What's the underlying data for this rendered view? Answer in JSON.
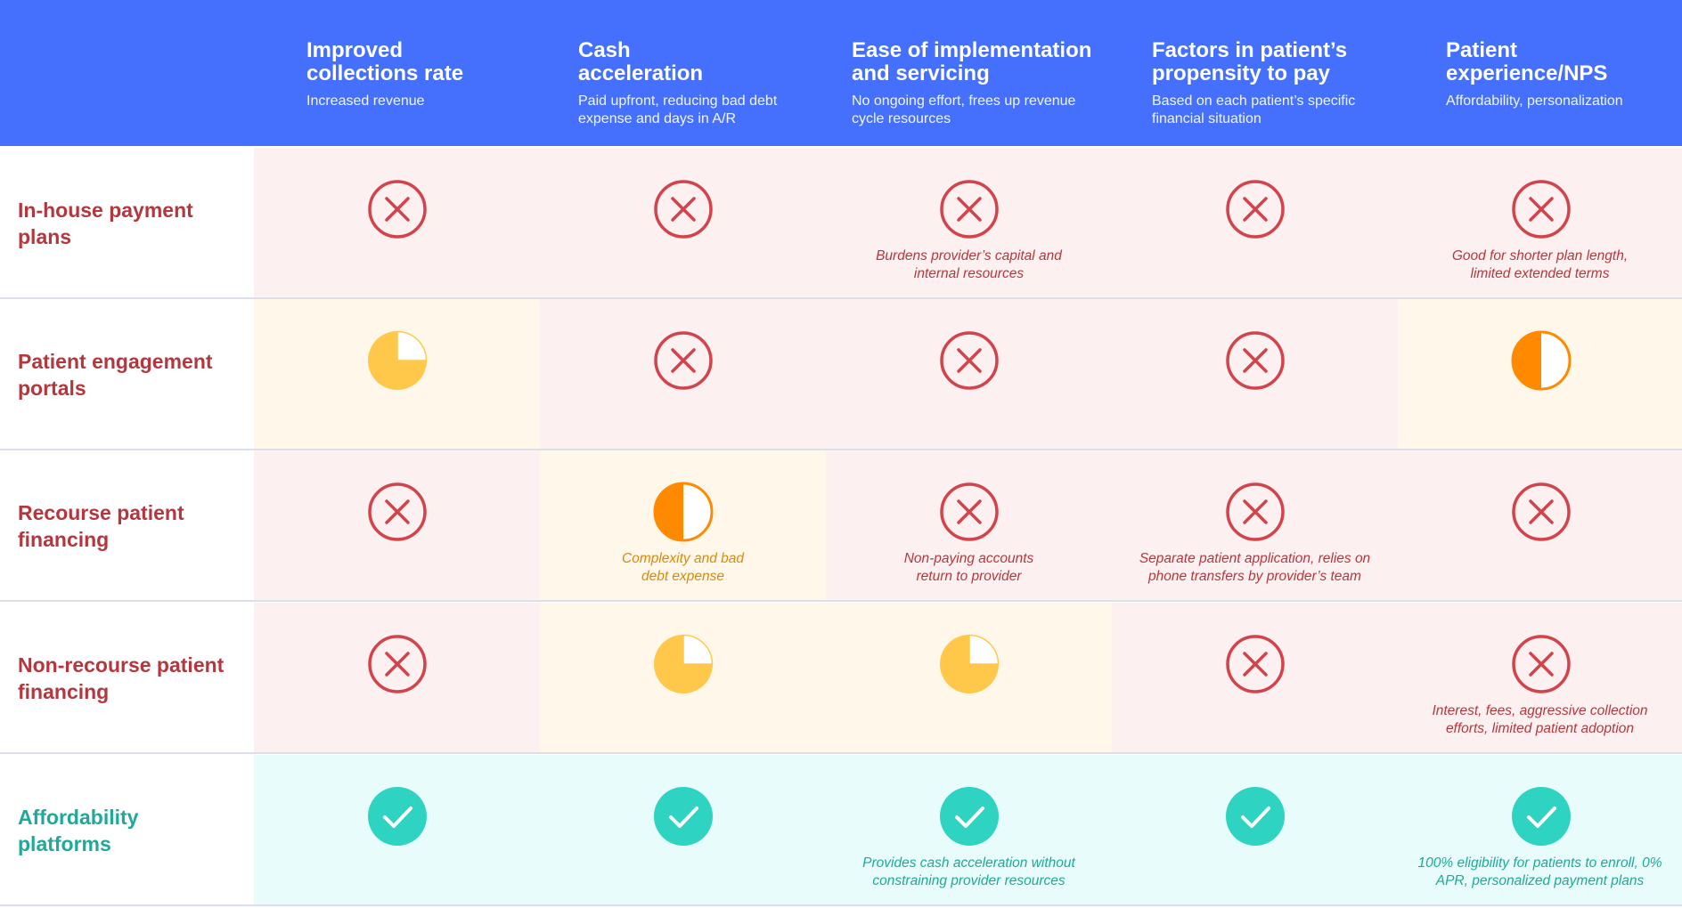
{
  "columns": [
    {
      "title": "Improved collections rate",
      "subtitle": "Increased revenue"
    },
    {
      "title": "Cash acceleration",
      "subtitle": "Paid upfront, reducing bad debt expense and days in A/R"
    },
    {
      "title": "Ease of implementation and servicing",
      "subtitle": "No ongoing effort, frees up revenue cycle resources"
    },
    {
      "title": "Factors in patient’s propensity to pay",
      "subtitle": "Based on each patient’s specific financial situation"
    },
    {
      "title": "Patient experience/NPS",
      "subtitle": "Affordability, personalization"
    }
  ],
  "rows": [
    {
      "label": "In-house payment plans",
      "cells": [
        {
          "rating": "cross",
          "note": ""
        },
        {
          "rating": "cross",
          "note": ""
        },
        {
          "rating": "cross",
          "note": "Burdens provider’s capital and internal resources"
        },
        {
          "rating": "cross",
          "note": ""
        },
        {
          "rating": "cross",
          "note": "Good for shorter plan length, limited extended terms"
        }
      ]
    },
    {
      "label": "Patient engagement portals",
      "cells": [
        {
          "rating": "three-quarter",
          "note": ""
        },
        {
          "rating": "cross",
          "note": ""
        },
        {
          "rating": "cross",
          "note": ""
        },
        {
          "rating": "cross",
          "note": ""
        },
        {
          "rating": "half",
          "note": ""
        }
      ]
    },
    {
      "label": "Recourse patient financing",
      "cells": [
        {
          "rating": "cross",
          "note": ""
        },
        {
          "rating": "half",
          "note": "Complexity and bad debt expense"
        },
        {
          "rating": "cross",
          "note": "Non-paying accounts return to provider"
        },
        {
          "rating": "cross",
          "note": "Separate patient application, relies on phone transfers by provider’s team"
        },
        {
          "rating": "cross",
          "note": ""
        }
      ]
    },
    {
      "label": "Non-recourse patient financing",
      "cells": [
        {
          "rating": "cross",
          "note": ""
        },
        {
          "rating": "three-quarter",
          "note": ""
        },
        {
          "rating": "three-quarter",
          "note": ""
        },
        {
          "rating": "cross",
          "note": ""
        },
        {
          "rating": "cross",
          "note": "Interest, fees, aggressive collection efforts, limited patient adoption"
        }
      ]
    },
    {
      "label": "Affordability platforms",
      "cells": [
        {
          "rating": "check",
          "note": ""
        },
        {
          "rating": "check",
          "note": ""
        },
        {
          "rating": "check",
          "note": "Provides cash acceleration without constraining provider resources"
        },
        {
          "rating": "check",
          "note": ""
        },
        {
          "rating": "check",
          "note": "100% eligibility for patients to enroll, 0% APR, personalized payment plans"
        }
      ]
    }
  ],
  "colors": {
    "header": "#4570fd",
    "cross": "#d2434b",
    "check": "#2fd3c1",
    "three_quarter": "#ffc84a",
    "half": "#ff8a00"
  }
}
